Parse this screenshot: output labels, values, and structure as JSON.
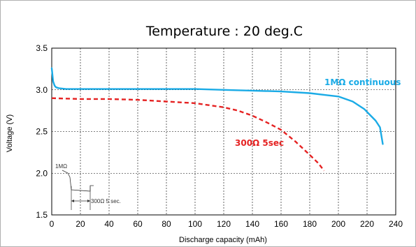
{
  "chart_data": {
    "type": "line",
    "title": "Temperature : 20 deg.C",
    "xlabel": "Discharge capacity (mAh)",
    "ylabel": "Voltage (V)",
    "xlim": [
      0,
      240
    ],
    "ylim": [
      1.5,
      3.5
    ],
    "x_ticks": [
      0,
      20,
      40,
      60,
      80,
      100,
      120,
      140,
      160,
      180,
      200,
      220,
      240
    ],
    "y_ticks": [
      "1.5",
      "2.0",
      "2.5",
      "3.0",
      "3.5"
    ],
    "grid": true,
    "series": [
      {
        "name": "1MΩ continuous",
        "color": "#1aabe6",
        "style": "solid",
        "x": [
          0,
          1,
          2,
          3,
          5,
          10,
          20,
          40,
          60,
          80,
          100,
          120,
          140,
          160,
          180,
          190,
          200,
          210,
          218,
          222,
          226,
          229,
          231
        ],
        "y": [
          3.26,
          3.1,
          3.05,
          3.03,
          3.02,
          3.01,
          3.01,
          3.01,
          3.01,
          3.01,
          3.01,
          3.0,
          2.99,
          2.98,
          2.96,
          2.94,
          2.92,
          2.86,
          2.77,
          2.7,
          2.63,
          2.55,
          2.35
        ]
      },
      {
        "name": "300Ω 5sec",
        "color": "#e52222",
        "style": "dashed",
        "x": [
          0,
          20,
          40,
          60,
          80,
          100,
          120,
          130,
          140,
          150,
          160,
          170,
          180,
          186,
          190
        ],
        "y": [
          2.9,
          2.89,
          2.89,
          2.88,
          2.86,
          2.84,
          2.79,
          2.75,
          2.69,
          2.61,
          2.52,
          2.38,
          2.22,
          2.12,
          2.03
        ]
      }
    ],
    "annotations": {
      "inset_top_label": "1MΩ",
      "inset_bottom_label": "300Ω 5 sec."
    }
  }
}
